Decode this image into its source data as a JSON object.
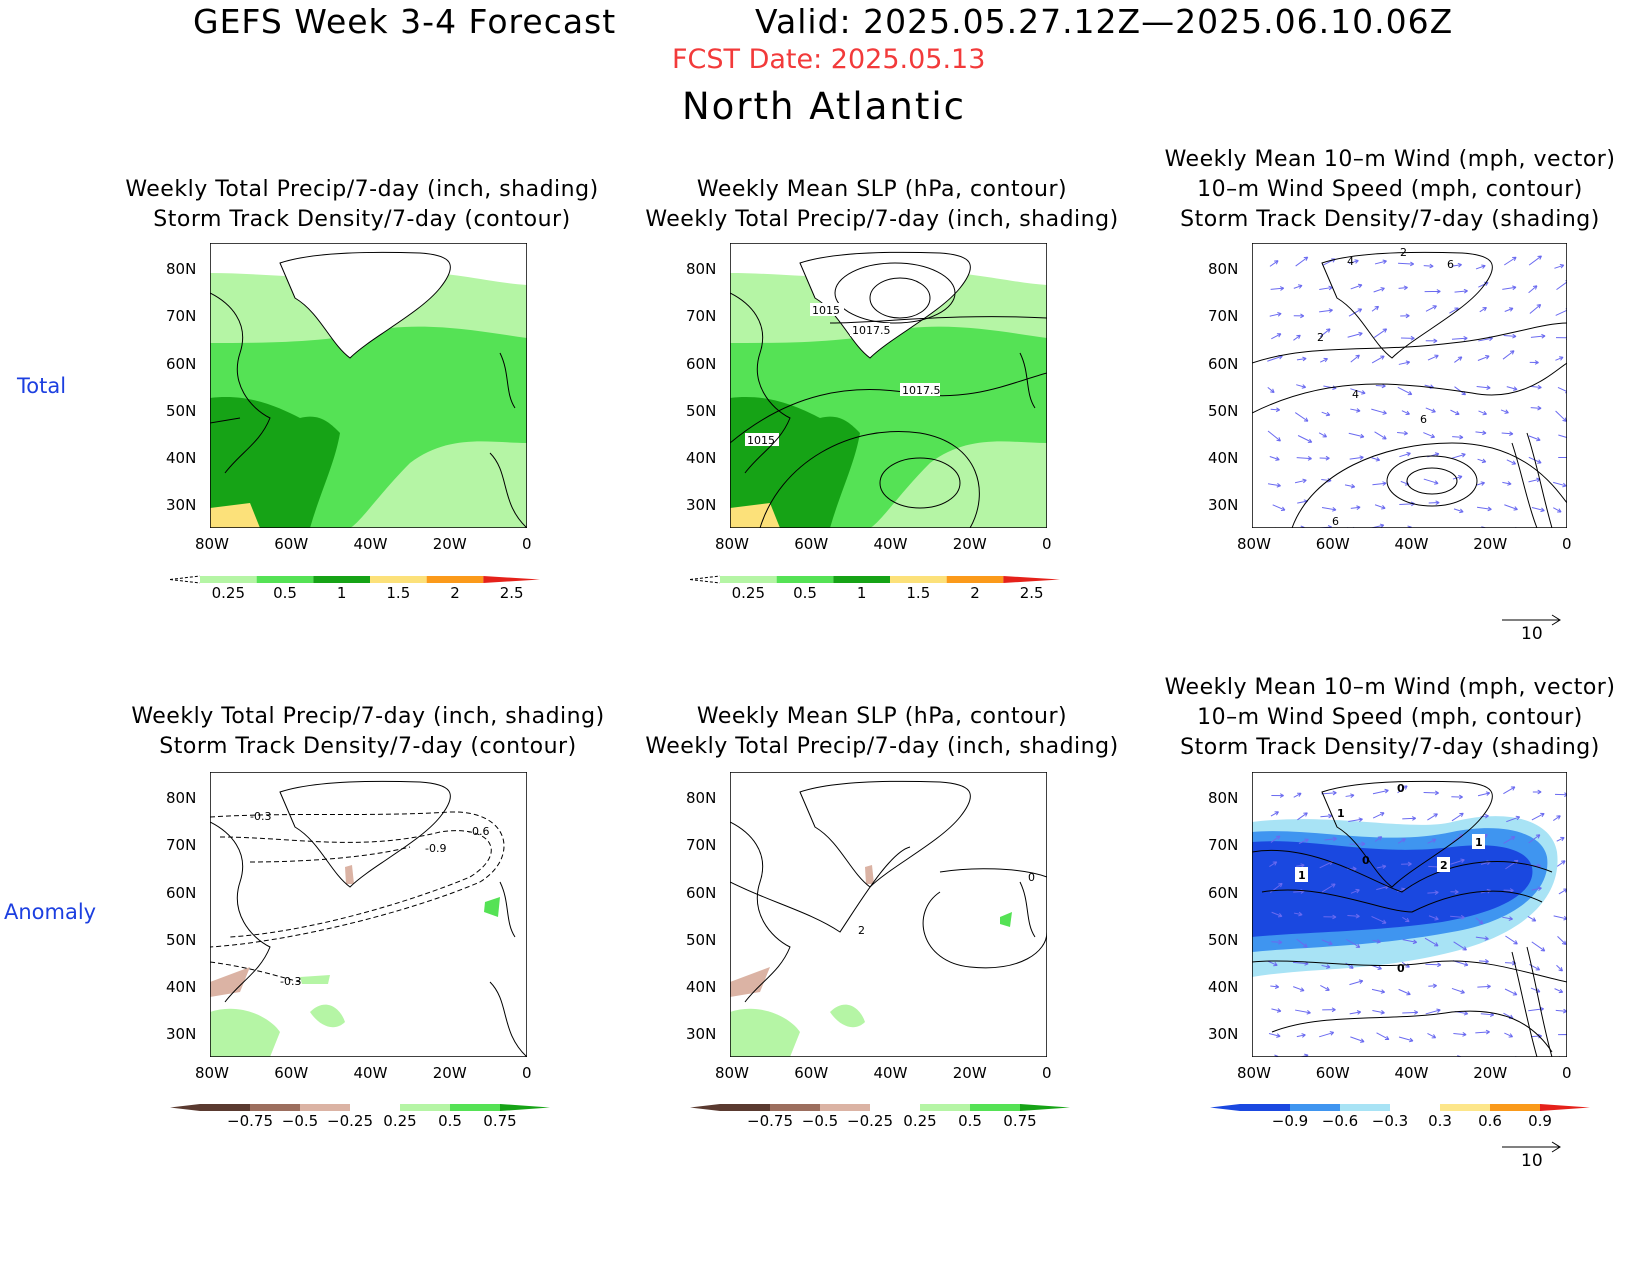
{
  "header": {
    "title": "GEFS Week 3-4 Forecast",
    "valid": "Valid: 2025.05.27.12Z—2025.06.10.06Z",
    "fcst_date": "FCST Date: 2025.05.13",
    "region": "North Atlantic"
  },
  "row_labels": {
    "total": "Total",
    "anomaly": "Anomaly"
  },
  "panels": {
    "precip_storm": {
      "line1": "Weekly Total Precip/7-day (inch, shading)",
      "line2": "Storm Track Density/7-day (contour)"
    },
    "slp_precip": {
      "line1": "Weekly Mean SLP (hPa, contour)",
      "line2": "Weekly Total Precip/7-day (inch, shading)"
    },
    "wind": {
      "line1": "Weekly Mean 10–m Wind (mph, vector)",
      "line2": "10–m Wind Speed (mph, contour)",
      "line3": "Storm Track Density/7-day (shading)"
    }
  },
  "axes": {
    "lat": [
      "80N",
      "70N",
      "60N",
      "50N",
      "40N",
      "30N"
    ],
    "lon": [
      "80W",
      "60W",
      "40W",
      "20W",
      "0"
    ]
  },
  "colorbars": {
    "precip_total": {
      "labels": [
        "0.25",
        "0.5",
        "1",
        "1.5",
        "2",
        "2.5"
      ],
      "colors": [
        "#b5f5a5",
        "#55e255",
        "#16a316",
        "#fce17a",
        "#fb9a1a",
        "#e5211a"
      ]
    },
    "precip_anom": {
      "labels": [
        "−0.75",
        "−0.5",
        "−0.25",
        "0.25",
        "0.5",
        "0.75"
      ],
      "colors": [
        "#5a3a30",
        "#9c6e5e",
        "#dbb3a4",
        "#ffffff",
        "#b5f5a5",
        "#55e255",
        "#16a316"
      ]
    },
    "storm_anom": {
      "labels": [
        "−0.9",
        "−0.6",
        "−0.3",
        "0.3",
        "0.6",
        "0.9"
      ],
      "colors": [
        "#1a48e0",
        "#3f95f0",
        "#a8e3f5",
        "#ffffff",
        "#fde68a",
        "#fa9a1a",
        "#e5211a"
      ]
    }
  },
  "contour_labels": {
    "slp_total": [
      "1015",
      "1017.5",
      "1017.5",
      "1015"
    ],
    "storm_anom": [
      "-0.3",
      "-0.6",
      "-0.9",
      "-0.3"
    ],
    "slp_anom": [
      "0",
      "2"
    ],
    "wind_total": [
      "2",
      "4",
      "6",
      "2",
      "4",
      "6",
      "6"
    ],
    "wind_anom": [
      "0",
      "1",
      "2",
      "1",
      "1",
      "0",
      "0"
    ]
  },
  "vector_ref": {
    "label": "10"
  }
}
